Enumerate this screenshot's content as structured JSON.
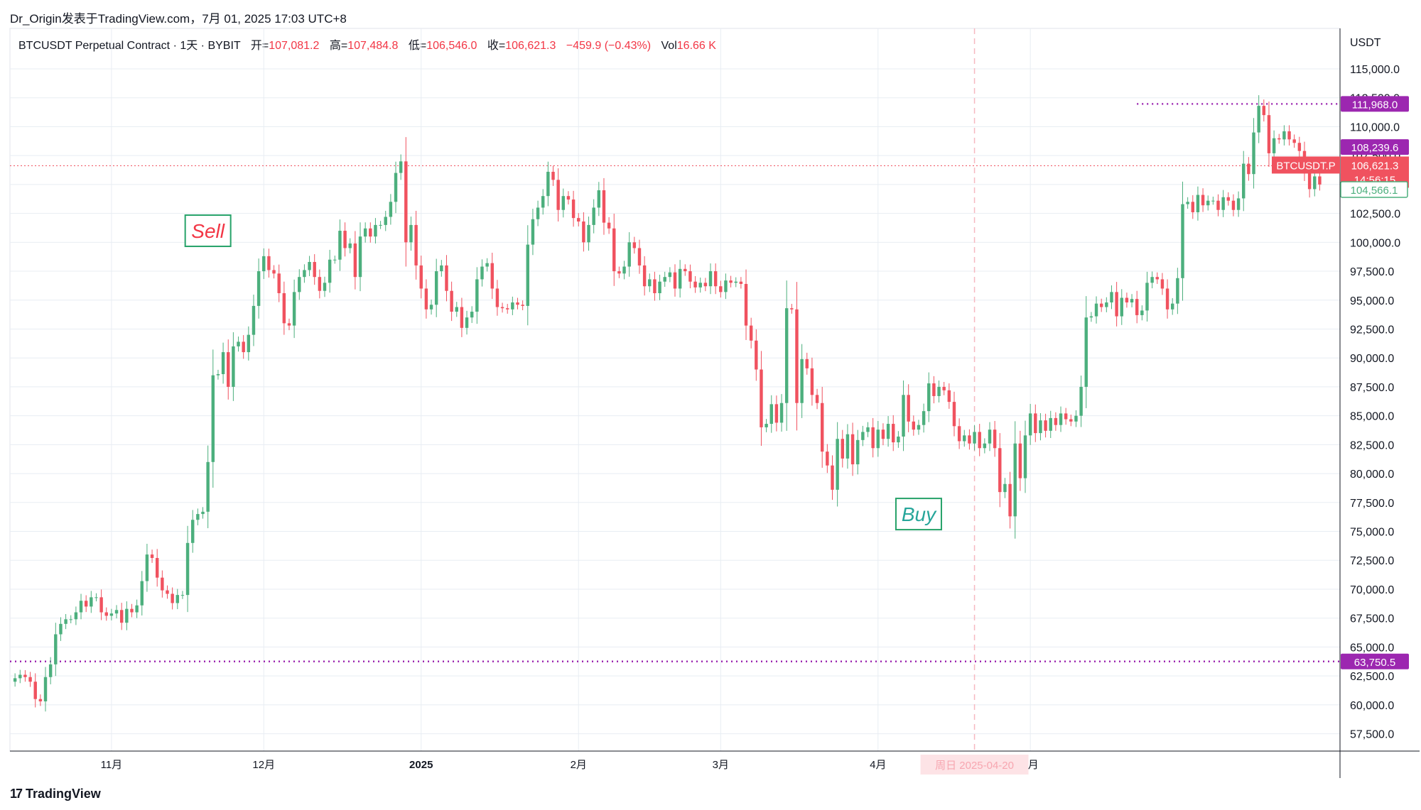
{
  "header": {
    "publisher": "Dr_Origin发表于TradingView.com，7月 01, 2025 17:03 UTC+8"
  },
  "legend": {
    "symbol": "BTCUSDT Perpetual Contract · 1天 · BYBIT",
    "open_label": "开=",
    "open": "107,081.2",
    "high_label": "高=",
    "high": "107,484.8",
    "low_label": "低=",
    "low": "106,546.0",
    "close_label": "收=",
    "close": "106,621.3",
    "change": "−459.9 (−0.43%)",
    "vol_label": "Vol",
    "vol": "16.66 K"
  },
  "footer": {
    "brand": "TradingView",
    "brand_mark": "17"
  },
  "colors": {
    "up": "#4caf7d",
    "down": "#f0525f",
    "grid": "#e8edf3",
    "purple": "#9c27b0",
    "price_red": "#f0525f",
    "green_label": "#26a69a"
  },
  "chart_data": {
    "type": "candlestick",
    "unit": "USDT",
    "ylim": [
      56000,
      118500
    ],
    "y_ticks": [
      57500,
      60000,
      62500,
      65000,
      67500,
      70000,
      72500,
      75000,
      77500,
      80000,
      82500,
      85000,
      87500,
      90000,
      92500,
      95000,
      97500,
      100000,
      102500,
      105000,
      107500,
      110000,
      112500,
      115000
    ],
    "y_tick_labels": [
      "57,500.0",
      "60,000.0",
      "62,500.0",
      "65,000.0",
      "67,500.0",
      "70,000.0",
      "72,500.0",
      "75,000.0",
      "77,500.0",
      "80,000.0",
      "82,500.0",
      "85,000.0",
      "87,500.0",
      "90,000.0",
      "92,500.0",
      "95,000.0",
      "97,500.0",
      "100,000.0",
      "102,500.0",
      "105,000.0",
      "107,500.0",
      "110,000.0",
      "112,500.0",
      "115,000.0"
    ],
    "x_range": [
      "2024-10-12",
      "2025-07-01"
    ],
    "x_ticks": [
      {
        "date": "2024-11-01",
        "label": "11月",
        "bold": false
      },
      {
        "date": "2024-12-01",
        "label": "12月",
        "bold": false
      },
      {
        "date": "2025-01-01",
        "label": "2025",
        "bold": true
      },
      {
        "date": "2025-02-01",
        "label": "2月",
        "bold": false
      },
      {
        "date": "2025-03-01",
        "label": "3月",
        "bold": false
      },
      {
        "date": "2025-04-01",
        "label": "4月",
        "bold": false
      },
      {
        "date": "2025-05-01",
        "label": "5月",
        "bold": false
      }
    ],
    "crosshair": {
      "date": "2025-04-20",
      "label": "周日 2025-04-20"
    },
    "annotations": [
      {
        "text": "Sell",
        "date": "2024-11-20",
        "price": 101000,
        "color": "#f23645"
      },
      {
        "text": "Buy",
        "date": "2025-04-09",
        "price": 76500,
        "color": "#26a69a"
      }
    ],
    "levels": [
      {
        "price": 111968.0,
        "label": "111,968.0",
        "style": "dotted",
        "color": "#9c27b0",
        "from_date": "2025-05-22"
      },
      {
        "price": 63750.5,
        "label": "63,750.5",
        "style": "dotted",
        "color": "#9c27b0",
        "from_date": "2024-10-12"
      },
      {
        "price": 106621.3,
        "label": "106,621.3",
        "style": "dotted-thin",
        "color": "#f0525f",
        "from_date": "2024-10-12"
      }
    ],
    "price_labels": [
      {
        "price": 111968.0,
        "text": "111,968.0",
        "kind": "purple"
      },
      {
        "price": 108239.6,
        "text": "108,239.6",
        "kind": "purple"
      },
      {
        "price": 106621.3,
        "text": "106,621.3",
        "kind": "red",
        "tag": "BTCUSDT.P",
        "countdown": "14:56:15"
      },
      {
        "price": 104566.1,
        "text": "104,566.1",
        "kind": "green-outline"
      },
      {
        "price": 63750.5,
        "text": "63,750.5",
        "kind": "purple"
      }
    ],
    "candles_close": [
      62300,
      62600,
      62400,
      62000,
      60500,
      60300,
      62400,
      63500,
      66100,
      67000,
      67400,
      67400,
      68000,
      69000,
      68500,
      69300,
      69300,
      68000,
      67700,
      67900,
      68200,
      67100,
      68300,
      68000,
      68600,
      70700,
      73000,
      72700,
      71000,
      69900,
      69600,
      68800,
      69500,
      69500,
      74000,
      76000,
      76500,
      76700,
      81000,
      88500,
      88600,
      90500,
      87500,
      91000,
      91400,
      90500,
      92000,
      94500,
      97500,
      98800,
      97600,
      97300,
      95600,
      93000,
      92800,
      95700,
      97000,
      97600,
      98300,
      97000,
      95800,
      96500,
      98500,
      98500,
      101000,
      99500,
      99900,
      97000,
      100500,
      101200,
      100500,
      101500,
      101500,
      102200,
      103500,
      106000,
      107000,
      100000,
      101500,
      98000,
      96000,
      94200,
      94600,
      97500,
      98000,
      95800,
      94000,
      94400,
      92600,
      93500,
      94000,
      96800,
      97900,
      98200,
      96000,
      94400,
      94300,
      94200,
      94800,
      94600,
      94500,
      99800,
      102000,
      103000,
      104000,
      106100,
      105400,
      102800,
      104000,
      103700,
      102100,
      101800,
      100000,
      101500,
      103000,
      104500,
      101700,
      101200,
      97500,
      97300,
      97900,
      100000,
      99500,
      98000,
      96200,
      96800,
      95600,
      96600,
      97000,
      97400,
      96000,
      97700,
      97500,
      96600,
      96100,
      96500,
      96200,
      97500,
      96200,
      95700,
      96700,
      96500,
      96600,
      96400,
      92800,
      91500,
      89000,
      84000,
      84300,
      86000,
      84400,
      86100,
      94300,
      94200,
      86100,
      89900,
      89100,
      86800,
      86100,
      81900,
      80700,
      78600,
      83000,
      81300,
      83400,
      80800,
      82900,
      83600,
      84000,
      82200,
      83800,
      83000,
      84300,
      82700,
      83200,
      86800,
      84500,
      83800,
      84200,
      85400,
      87800,
      86700,
      87500,
      87200,
      86200,
      84100,
      82800,
      83300,
      82600,
      83600,
      82200,
      82600,
      83800,
      82200,
      78400,
      79100,
      76300,
      82600,
      79600,
      83300,
      85200,
      83500,
      84600,
      83700,
      84800,
      84200,
      85200,
      84700,
      84500,
      85000,
      87500,
      93500,
      93600,
      94700,
      94400,
      94800,
      95700,
      93600,
      95200,
      94800,
      95100,
      93700,
      94100,
      96500,
      97000,
      96800,
      96000,
      94200,
      94700,
      96900,
      103300,
      103500,
      102600,
      104100,
      103200,
      103600,
      103600,
      102800,
      103900,
      103600,
      102800,
      103800,
      106800,
      105900,
      109500,
      111800,
      111000,
      107700,
      109000,
      108900,
      109600,
      108900,
      108600,
      107900,
      106100,
      104600,
      105700,
      105000
    ]
  }
}
